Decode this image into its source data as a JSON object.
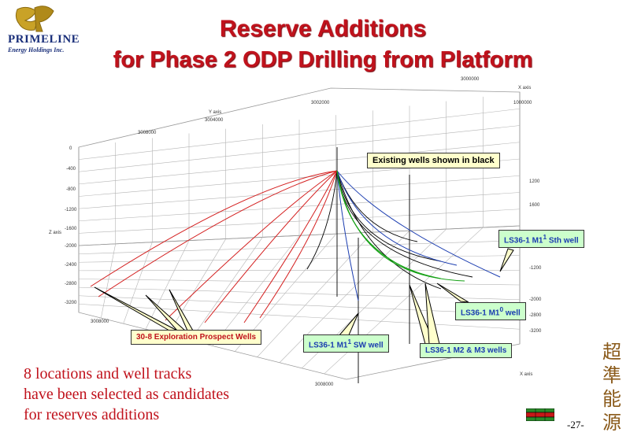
{
  "logo": {
    "name": "PRIMELINE",
    "subtitle": "Energy Holdings Inc."
  },
  "title": {
    "line1": "Reserve Additions",
    "line2": "for Phase 2 ODP Drilling from Platform"
  },
  "plot": {
    "y_axis_title": "Y axis",
    "x_axis_title": "X axis",
    "z_axis_title": "Z axis",
    "top_labels": [
      "3008000",
      "3004000",
      "3002000",
      "3000000"
    ],
    "right_labels": [
      "1000000",
      "1200",
      "1600",
      "-1200",
      "-2000",
      "-2800",
      "-3200"
    ],
    "left_labels": [
      "0",
      "-400",
      "-800",
      "-1200",
      "-1600",
      "-2000",
      "-2400",
      "-2800",
      "-3200"
    ],
    "bottom_labels": [
      "3008000",
      "3008000",
      "X axis"
    ],
    "colors": {
      "exploration": "#d42020",
      "existing": "#000000",
      "m1_sth": "#1a3cb0",
      "m1_0": "#14a014",
      "grid": "#b4b4b4"
    }
  },
  "callouts": {
    "existing": "Existing wells shown in black",
    "m1_sth": "LS36-1 M1",
    "m1_sth_sup": "1",
    "m1_sth_tail": " Sth well",
    "m1_0": "LS36-1 M1",
    "m1_0_sup": "0",
    "m1_0_tail": " well",
    "m1_sw": "LS36-1 M1",
    "m1_sw_sup": "1",
    "m1_sw_tail": " SW well",
    "m2_m3": "LS36-1 M2 & M3 wells",
    "exploration": "30-8 Exploration Prospect Wells"
  },
  "candidates": {
    "line1": "8 locations and well tracks",
    "line2": "have been selected as candidates",
    "line3": "for reserves additions"
  },
  "page_number": "-27-",
  "chinese_text": [
    "超",
    "準",
    "能",
    "源"
  ]
}
